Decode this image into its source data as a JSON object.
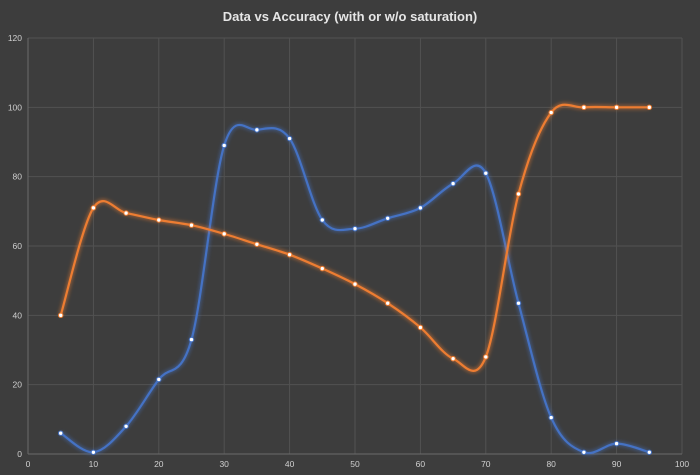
{
  "chart_data": {
    "type": "scatter",
    "title": "Data vs Accuracy (with or w/o saturation)",
    "xlabel": "",
    "ylabel": "",
    "xlim": [
      0,
      100
    ],
    "ylim": [
      0,
      120
    ],
    "x_ticks": [
      0,
      10,
      20,
      30,
      40,
      50,
      60,
      70,
      80,
      90,
      100
    ],
    "y_ticks": [
      0,
      20,
      40,
      60,
      80,
      100,
      120
    ],
    "grid": true,
    "legend": "none",
    "line_style": "smoothed with markers",
    "series": [
      {
        "color": "#4472c4",
        "x": [
          5,
          10,
          15,
          20,
          25,
          30,
          35,
          40,
          45,
          50,
          55,
          60,
          65,
          70,
          75,
          80,
          85,
          90,
          95
        ],
        "y": [
          6,
          0.5,
          8,
          21.5,
          33,
          89,
          93.5,
          91,
          67.5,
          65,
          68,
          71,
          78,
          81,
          43.5,
          10.5,
          0.5,
          3,
          0.5
        ]
      },
      {
        "color": "#ed7d31",
        "x": [
          5,
          10,
          15,
          20,
          25,
          30,
          35,
          40,
          45,
          50,
          55,
          60,
          65,
          70,
          75,
          80,
          85,
          90,
          95
        ],
        "y": [
          40,
          71,
          69.5,
          67.5,
          66,
          63.5,
          60.5,
          57.5,
          53.5,
          49,
          43.5,
          36.5,
          27.5,
          28,
          75,
          98.5,
          100,
          100,
          100
        ]
      }
    ]
  }
}
